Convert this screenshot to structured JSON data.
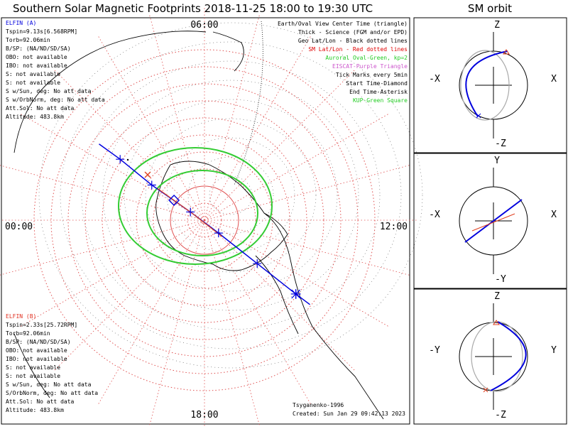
{
  "title": "Southern Solar Magnetic Footprints 2018-11-25 18:00 to 19:30 UTC",
  "sm_orbit_title": "SM orbit",
  "clock": {
    "top": "06:00",
    "left": "00:00",
    "right": "12:00",
    "bottom": "18:00"
  },
  "legend": [
    {
      "text": "Earth/Oval View Center Time (triangle)",
      "color": "#000000"
    },
    {
      "text": "Thick - Science (FGM and/or EPD)",
      "color": "#000000"
    },
    {
      "text": "Geo Lat/Lon - Black dotted lines",
      "color": "#000000"
    },
    {
      "text": "SM Lat/Lon - Red dotted lines",
      "color": "#e00000"
    },
    {
      "text": "Auroral Oval-Green, kp=2",
      "color": "#22cc22"
    },
    {
      "text": "EISCAT-Purple Triangle",
      "color": "#cc55cc"
    },
    {
      "text": "Tick Marks every 5min",
      "color": "#000000"
    },
    {
      "text": "Start Time-Diamond",
      "color": "#000000"
    },
    {
      "text": "End Time-Asterisk",
      "color": "#000000"
    },
    {
      "text": "KUP-Green Square",
      "color": "#22cc22"
    }
  ],
  "elfin_a": {
    "name": "ELFIN (A)",
    "color": "#0000dd",
    "lines": [
      "Tspin=9.13s[6.568RPM]",
      "Torb=92.06min",
      "B/SP: (NA/ND/SD/SA)",
      "OBO: not available",
      "IBO: not available",
      "S: not available",
      "S: not available",
      "S w/Sun, deg: No att data",
      "S w/OrbNorm, deg: No att data",
      "Att.Sol: No att data",
      "Altitude: 483.8km"
    ]
  },
  "elfin_b": {
    "name": "ELFIN (B)",
    "color": "#e03020",
    "lines": [
      "Tspin=2.33s[25.72RPM]",
      "Torb=92.06min",
      "B/SP: (NA/ND/SD/SA)",
      "OBO: not available",
      "IBO: not available",
      "S: not available",
      "S: not available",
      "S w/Sun, deg: No att data",
      "S/OrbNorm, deg: No att data",
      "Att.Sol: No att data",
      "Altitude: 483.8km"
    ]
  },
  "credits": {
    "model": "Tsyganenko-1996",
    "created": "Created: Sun Jan 29 09:42:13 2023"
  },
  "panels": [
    {
      "top": "Z",
      "bottom": "-Z",
      "left": "-X",
      "right": "X"
    },
    {
      "top": "Y",
      "bottom": "-Y",
      "left": "-X",
      "right": "X"
    },
    {
      "top": "Z",
      "bottom": "-Z",
      "left": "-Y",
      "right": "Y"
    }
  ],
  "colors": {
    "grid_red": "#e05050",
    "oval_green": "#33cc33",
    "track_a": "#0000dd",
    "track_b": "#e04020",
    "coast": "#000000",
    "earth_grey": "#aaaaaa"
  },
  "chart_data": {
    "type": "map",
    "projection": "south-polar SM, noon at right",
    "footprint_a": {
      "units": "map fraction",
      "points": [
        [
          -0.9,
          -0.65
        ],
        [
          -0.72,
          -0.52
        ],
        [
          -0.45,
          -0.3
        ],
        [
          -0.12,
          -0.07
        ],
        [
          0.12,
          0.11
        ],
        [
          0.45,
          0.37
        ],
        [
          0.78,
          0.63
        ],
        [
          0.9,
          0.72
        ]
      ],
      "tick_index": [
        1,
        2,
        3,
        4,
        5,
        6
      ],
      "start": [
        -0.26,
        -0.17
      ],
      "end": [
        0.78,
        0.63
      ]
    },
    "footprint_b_segment": [
      [
        -0.4,
        -0.27
      ],
      [
        -0.12,
        -0.07
      ],
      [
        0.15,
        0.14
      ]
    ],
    "oval_kp": 2
  }
}
